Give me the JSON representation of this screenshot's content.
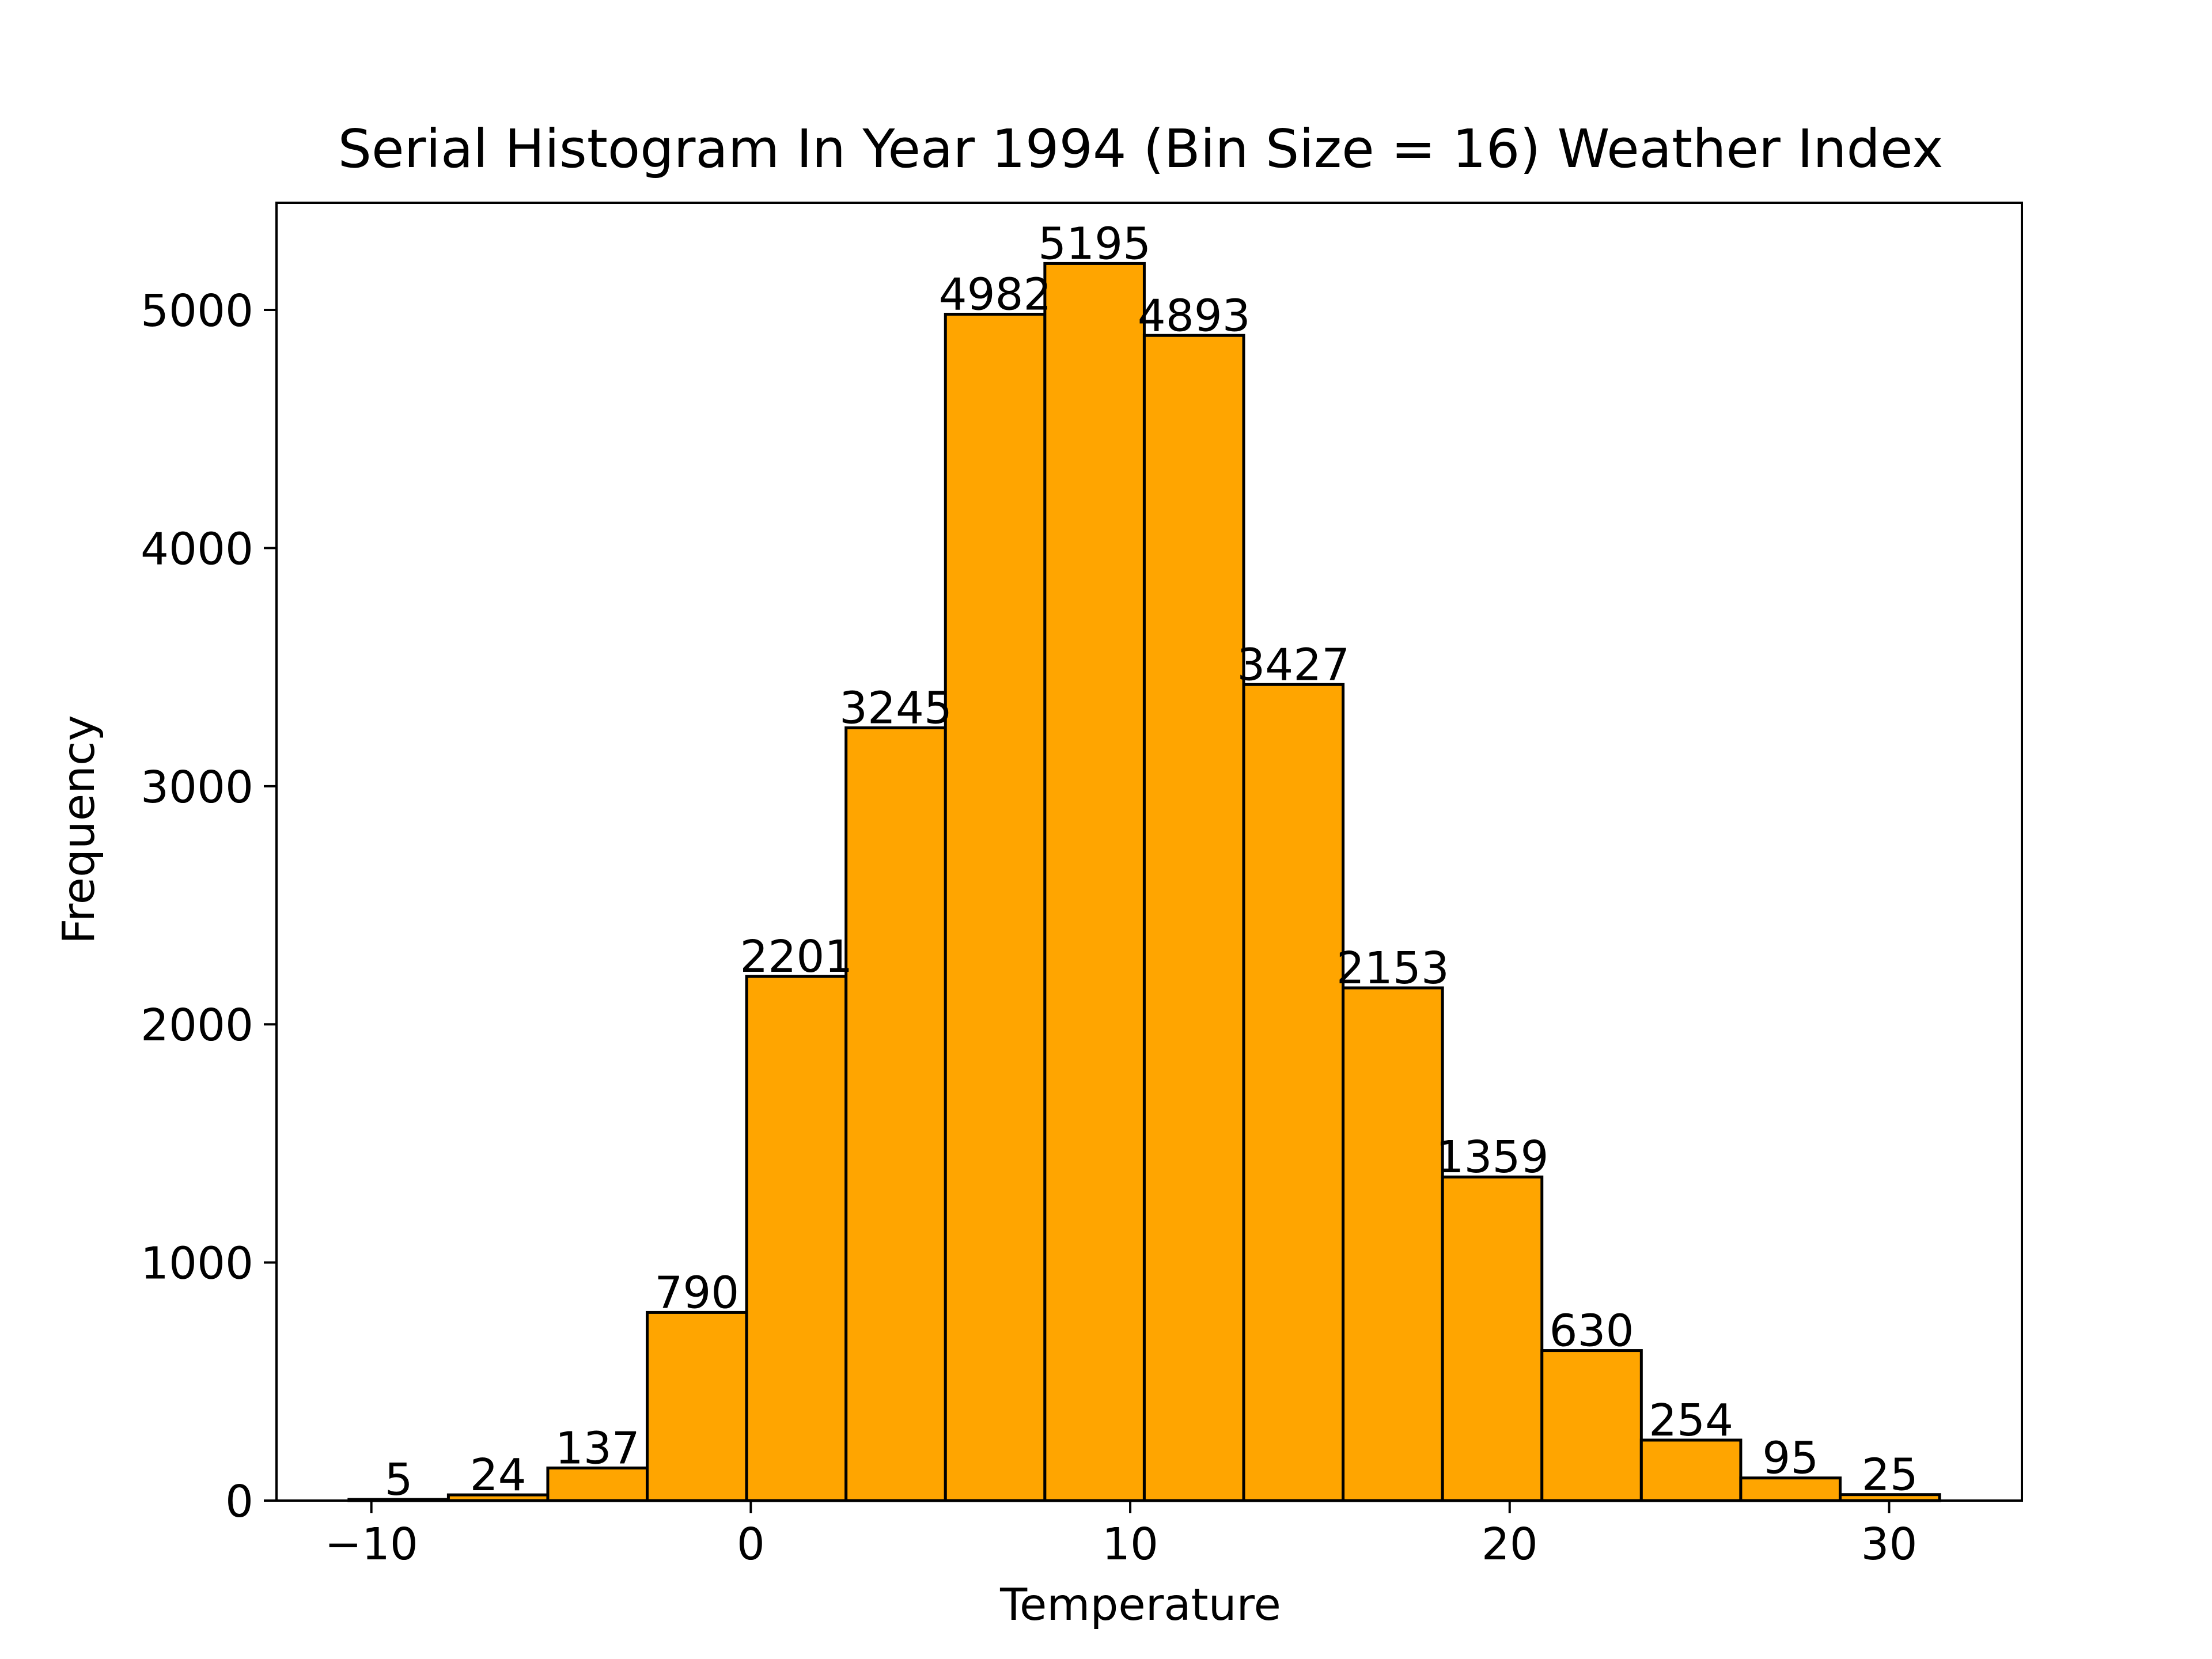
{
  "chart_data": {
    "type": "bar",
    "title": "Serial Histogram In Year 1994 (Bin Size = 16) Weather Index",
    "xlabel": "Temperature",
    "ylabel": "Frequency",
    "bin_edges": [
      -10.59,
      -7.97,
      -5.35,
      -2.73,
      -0.11,
      2.51,
      5.13,
      7.75,
      10.37,
      12.99,
      15.61,
      18.23,
      20.85,
      23.47,
      26.09,
      28.71,
      31.33
    ],
    "values": [
      5,
      24,
      137,
      790,
      2201,
      3245,
      4982,
      5195,
      4893,
      3427,
      2153,
      1359,
      630,
      254,
      95,
      25
    ],
    "data_labels": [
      "5",
      "24",
      "137",
      "790",
      "2201",
      "3245",
      "4982",
      "5195",
      "4893",
      "3427",
      "2153",
      "1359",
      "630",
      "254",
      "95",
      "25"
    ],
    "xlim": [
      -12.5,
      33.5
    ],
    "ylim": [
      0,
      5450
    ],
    "xticks": [
      -10,
      0,
      10,
      20,
      30
    ],
    "xtick_labels": [
      "−10",
      "0",
      "10",
      "20",
      "30"
    ],
    "yticks": [
      0,
      1000,
      2000,
      3000,
      4000,
      5000
    ],
    "ytick_labels": [
      "0",
      "1000",
      "2000",
      "3000",
      "4000",
      "5000"
    ],
    "grid": false,
    "legend": "none",
    "bar_color": "#FFA500",
    "edge_color": "#000000"
  }
}
